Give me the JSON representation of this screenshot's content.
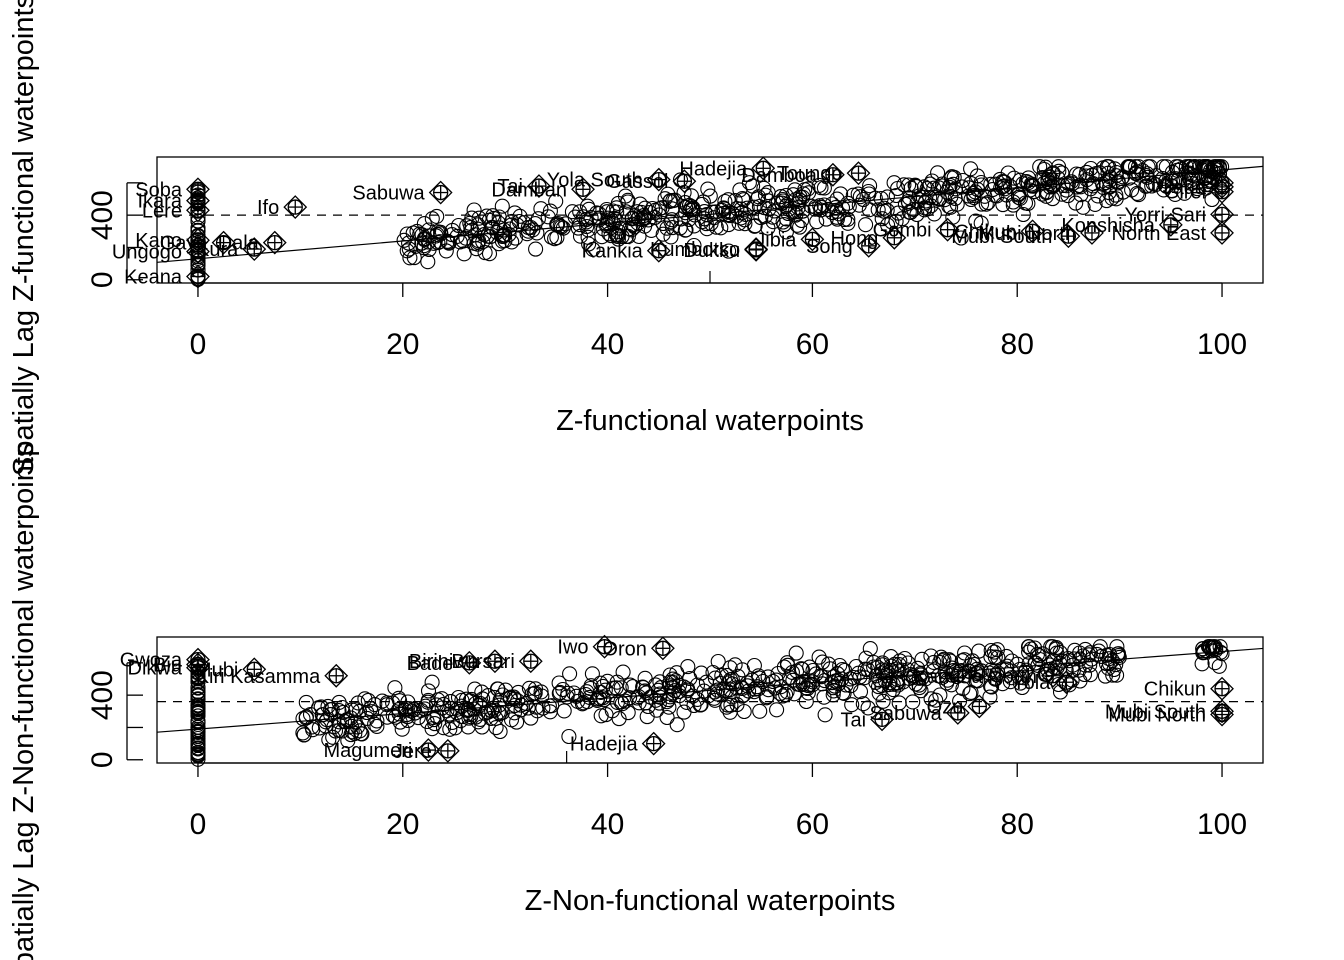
{
  "chart_data": [
    {
      "type": "scatter",
      "title": "",
      "xlabel": "Z-functional waterpoints",
      "ylabel": "Spatially Lag Z-functional waterpoints",
      "xlim": [
        -4,
        104
      ],
      "ylim": [
        -20,
        760
      ],
      "x_ticks": [
        "0",
        "20",
        "40",
        "60",
        "80",
        "100"
      ],
      "y_ticks": [
        "0",
        "400"
      ],
      "mean_y": 400,
      "regression": {
        "slope": 5.5,
        "intercept": 130
      },
      "labels": [
        {
          "text": "Ifo",
          "x": 9.5,
          "y": 450
        },
        {
          "text": "Sabuwa",
          "x": 23.7,
          "y": 540
        },
        {
          "text": "Damban",
          "x": 37.6,
          "y": 560
        },
        {
          "text": "Tai",
          "x": 33.3,
          "y": 580
        },
        {
          "text": "Yola South",
          "x": 45,
          "y": 620
        },
        {
          "text": "Gassol",
          "x": 47.5,
          "y": 610
        },
        {
          "text": "Hadejia",
          "x": 55.2,
          "y": 690
        },
        {
          "text": "Damboa",
          "x": 62,
          "y": 650
        },
        {
          "text": "Toungo",
          "x": 64.5,
          "y": 660
        },
        {
          "text": "Jada",
          "x": 100,
          "y": 575
        },
        {
          "text": "Girei",
          "x": 100,
          "y": 545
        },
        {
          "text": "Maiha",
          "x": 100,
          "y": 600
        },
        {
          "text": "Yorri Sari",
          "x": 100,
          "y": 405
        },
        {
          "text": "North East",
          "x": 100,
          "y": 290
        },
        {
          "text": "Mubi North",
          "x": 87.3,
          "y": 290
        },
        {
          "text": "Konshisha",
          "x": 95,
          "y": 340
        },
        {
          "text": "Mubi South",
          "x": 85,
          "y": 270
        },
        {
          "text": "Chikun",
          "x": 81.5,
          "y": 300
        },
        {
          "text": "Gombi",
          "x": 73.2,
          "y": 310
        },
        {
          "text": "Song",
          "x": 65.5,
          "y": 210
        },
        {
          "text": "Hong",
          "x": 68,
          "y": 260
        },
        {
          "text": "Jibia",
          "x": 60,
          "y": 250
        },
        {
          "text": "Dukku",
          "x": 54.5,
          "y": 185
        },
        {
          "text": "Kumbotso",
          "x": 54.5,
          "y": 190
        },
        {
          "text": "Kankia",
          "x": 45,
          "y": 180
        },
        {
          "text": "Gaya",
          "x": 2.5,
          "y": 230
        },
        {
          "text": "Kura",
          "x": 5.5,
          "y": 190
        },
        {
          "text": "Dala",
          "x": 7.5,
          "y": 230
        },
        {
          "text": "Ungogo",
          "x": 0,
          "y": 175
        },
        {
          "text": "Kano",
          "x": 0,
          "y": 245
        },
        {
          "text": "Soba",
          "x": 0,
          "y": 560
        },
        {
          "text": "Ikara",
          "x": 0,
          "y": 490
        },
        {
          "text": "Lere",
          "x": 0,
          "y": 430
        },
        {
          "text": "Keana",
          "x": 0,
          "y": 20
        }
      ]
    },
    {
      "type": "scatter",
      "title": "",
      "xlabel": "Z-Non-functional waterpoints",
      "ylabel": "Spatially Lag Z-Non-functional waterpoints",
      "xlim": [
        -4,
        104
      ],
      "ylim": [
        -20,
        760
      ],
      "x_ticks": [
        "0",
        "20",
        "40",
        "60",
        "80",
        "100"
      ],
      "y_ticks": [
        "0",
        "400"
      ],
      "mean_y": 360,
      "regression": {
        "slope": 4.8,
        "intercept": 190
      },
      "labels": [
        {
          "text": "Chikun",
          "x": 100,
          "y": 440
        },
        {
          "text": "Mubi South",
          "x": 100,
          "y": 300
        },
        {
          "text": "Mubi North",
          "x": 100,
          "y": 280
        },
        {
          "text": "Tai",
          "x": 66.8,
          "y": 250
        },
        {
          "text": "Sabuwa",
          "x": 74.2,
          "y": 290
        },
        {
          "text": "Ozu",
          "x": 76.3,
          "y": 330
        },
        {
          "text": "Kaduna North",
          "x": 83.5,
          "y": 520
        },
        {
          "text": "Yola",
          "x": 84.8,
          "y": 480
        },
        {
          "text": "Hadejia",
          "x": 44.5,
          "y": 100
        },
        {
          "text": "Magumeri",
          "x": 22.5,
          "y": 60
        },
        {
          "text": "Jere",
          "x": 24.4,
          "y": 55
        },
        {
          "text": "Iwo",
          "x": 39.7,
          "y": 700
        },
        {
          "text": "Oron",
          "x": 45.4,
          "y": 690
        },
        {
          "text": "Bursari",
          "x": 32.5,
          "y": 610
        },
        {
          "text": "Biriniwa",
          "x": 29,
          "y": 610
        },
        {
          "text": "Bade",
          "x": 26.5,
          "y": 600
        },
        {
          "text": "Kiri Kasamma",
          "x": 13.5,
          "y": 520
        },
        {
          "text": "Mubi",
          "x": 5.5,
          "y": 560
        },
        {
          "text": "Gwoza",
          "x": 0,
          "y": 620
        },
        {
          "text": "Biu",
          "x": 0,
          "y": 590
        },
        {
          "text": "Dikwa",
          "x": 0,
          "y": 570
        }
      ]
    }
  ]
}
